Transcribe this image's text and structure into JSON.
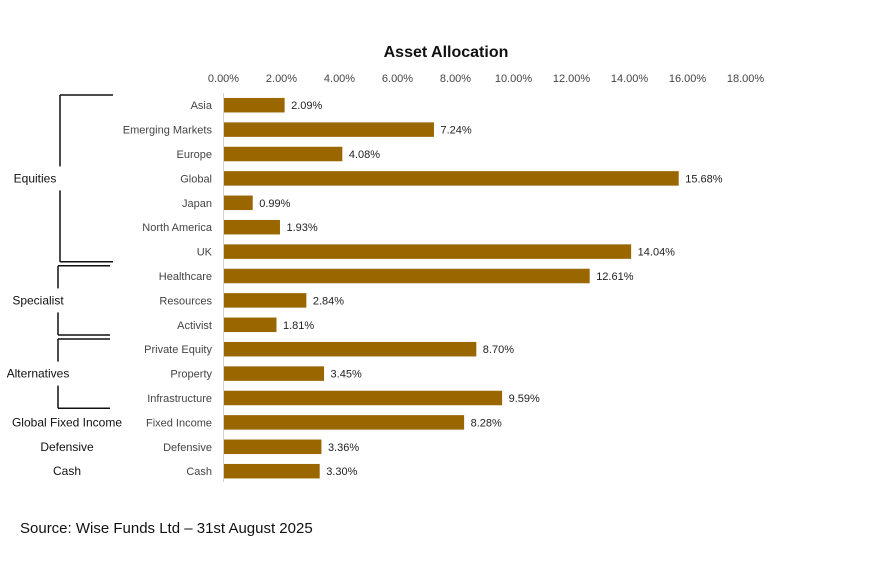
{
  "chart_data": {
    "type": "bar",
    "orientation": "horizontal",
    "title": "Asset Allocation",
    "xlim": [
      0,
      18
    ],
    "x_ticks": [
      "0.00%",
      "2.00%",
      "4.00%",
      "6.00%",
      "8.00%",
      "10.00%",
      "12.00%",
      "14.00%",
      "16.00%",
      "18.00%"
    ],
    "bar_color": "#996600",
    "categories": [
      "Asia",
      "Emerging Markets",
      "Europe",
      "Global",
      "Japan",
      "North America",
      "UK",
      "Healthcare",
      "Resources",
      "Activist",
      "Private Equity",
      "Property",
      "Infrastructure",
      "Fixed Income",
      "Defensive",
      "Cash"
    ],
    "values": [
      2.09,
      7.24,
      4.08,
      15.68,
      0.99,
      1.93,
      14.04,
      12.61,
      2.84,
      1.81,
      8.7,
      3.45,
      9.59,
      8.28,
      3.36,
      3.3
    ],
    "data_labels": [
      "2.09%",
      "7.24%",
      "4.08%",
      "15.68%",
      "0.99%",
      "1.93%",
      "14.04%",
      "12.61%",
      "2.84%",
      "1.81%",
      "8.70%",
      "3.45%",
      "9.59%",
      "8.28%",
      "3.36%",
      "3.30%"
    ],
    "groups": [
      {
        "label": "Equities",
        "from": 0,
        "to": 6,
        "bracket": true
      },
      {
        "label": "Specialist",
        "from": 7,
        "to": 9,
        "bracket": true
      },
      {
        "label": "Alternatives",
        "from": 10,
        "to": 12,
        "bracket": true
      },
      {
        "label": "Global Fixed Income",
        "from": 13,
        "to": 13,
        "bracket": false
      },
      {
        "label": "Defensive",
        "from": 14,
        "to": 14,
        "bracket": false
      },
      {
        "label": "Cash",
        "from": 15,
        "to": 15,
        "bracket": false
      }
    ]
  },
  "source_text": "Source: Wise Funds Ltd – 31st August 2025"
}
